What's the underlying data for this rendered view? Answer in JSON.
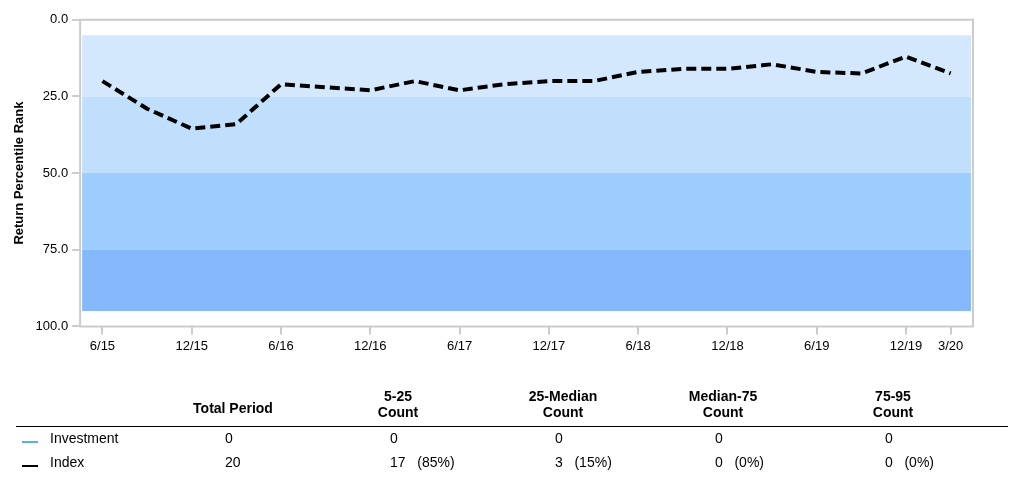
{
  "chart_data": {
    "type": "line",
    "ylabel": "Return Percentile Rank",
    "categories": [
      "6/15",
      null,
      "12/15",
      null,
      "6/16",
      null,
      "12/16",
      null,
      "6/17",
      null,
      "12/17",
      null,
      "6/18",
      null,
      "12/18",
      null,
      "6/19",
      null,
      "12/19",
      "3/20"
    ],
    "series": [
      {
        "name": "Investment",
        "color": "#5aaee8",
        "values": [
          null,
          null,
          null,
          null,
          null,
          null,
          null,
          null,
          null,
          null,
          null,
          null,
          null,
          null,
          null,
          null,
          null,
          null,
          null,
          null
        ],
        "line_style": "solid"
      },
      {
        "name": "Index",
        "color": "#000000",
        "line_style": "dashed",
        "values": [
          20,
          29,
          35.5,
          34,
          21,
          22,
          23,
          20,
          23,
          21,
          20,
          20,
          17,
          16,
          16,
          14.5,
          17,
          17.5,
          12,
          17.5
        ]
      }
    ],
    "ylim": [
      100,
      0
    ],
    "yticks": [
      {
        "value": 0,
        "label": "0.0"
      },
      {
        "value": 25,
        "label": "25.0"
      },
      {
        "value": 50,
        "label": "50.0"
      },
      {
        "value": 75,
        "label": "75.0"
      },
      {
        "value": 100,
        "label": "100.0"
      }
    ],
    "bands": [
      {
        "axis": "y",
        "from": 5,
        "to": 25,
        "color": "#d4e8fd"
      },
      {
        "axis": "y",
        "from": 25,
        "to": 50,
        "color": "#c0dffd"
      },
      {
        "axis": "y",
        "from": 50,
        "to": 75,
        "color": "#9ccdfd"
      },
      {
        "axis": "y",
        "from": 75,
        "to": 95,
        "color": "#86b8fd"
      }
    ],
    "grid": false,
    "legend": "bottom left",
    "marker": "none",
    "annotations": [
      "Total Period",
      "5-25 Count",
      "25-Median Count",
      "Median-75 Count",
      "75-95 Count",
      "0",
      "0",
      "0",
      "0",
      "0",
      "20",
      "17   (85%)",
      "3   (15%)",
      "0   (0%)",
      "0   (0%)"
    ]
  }
}
